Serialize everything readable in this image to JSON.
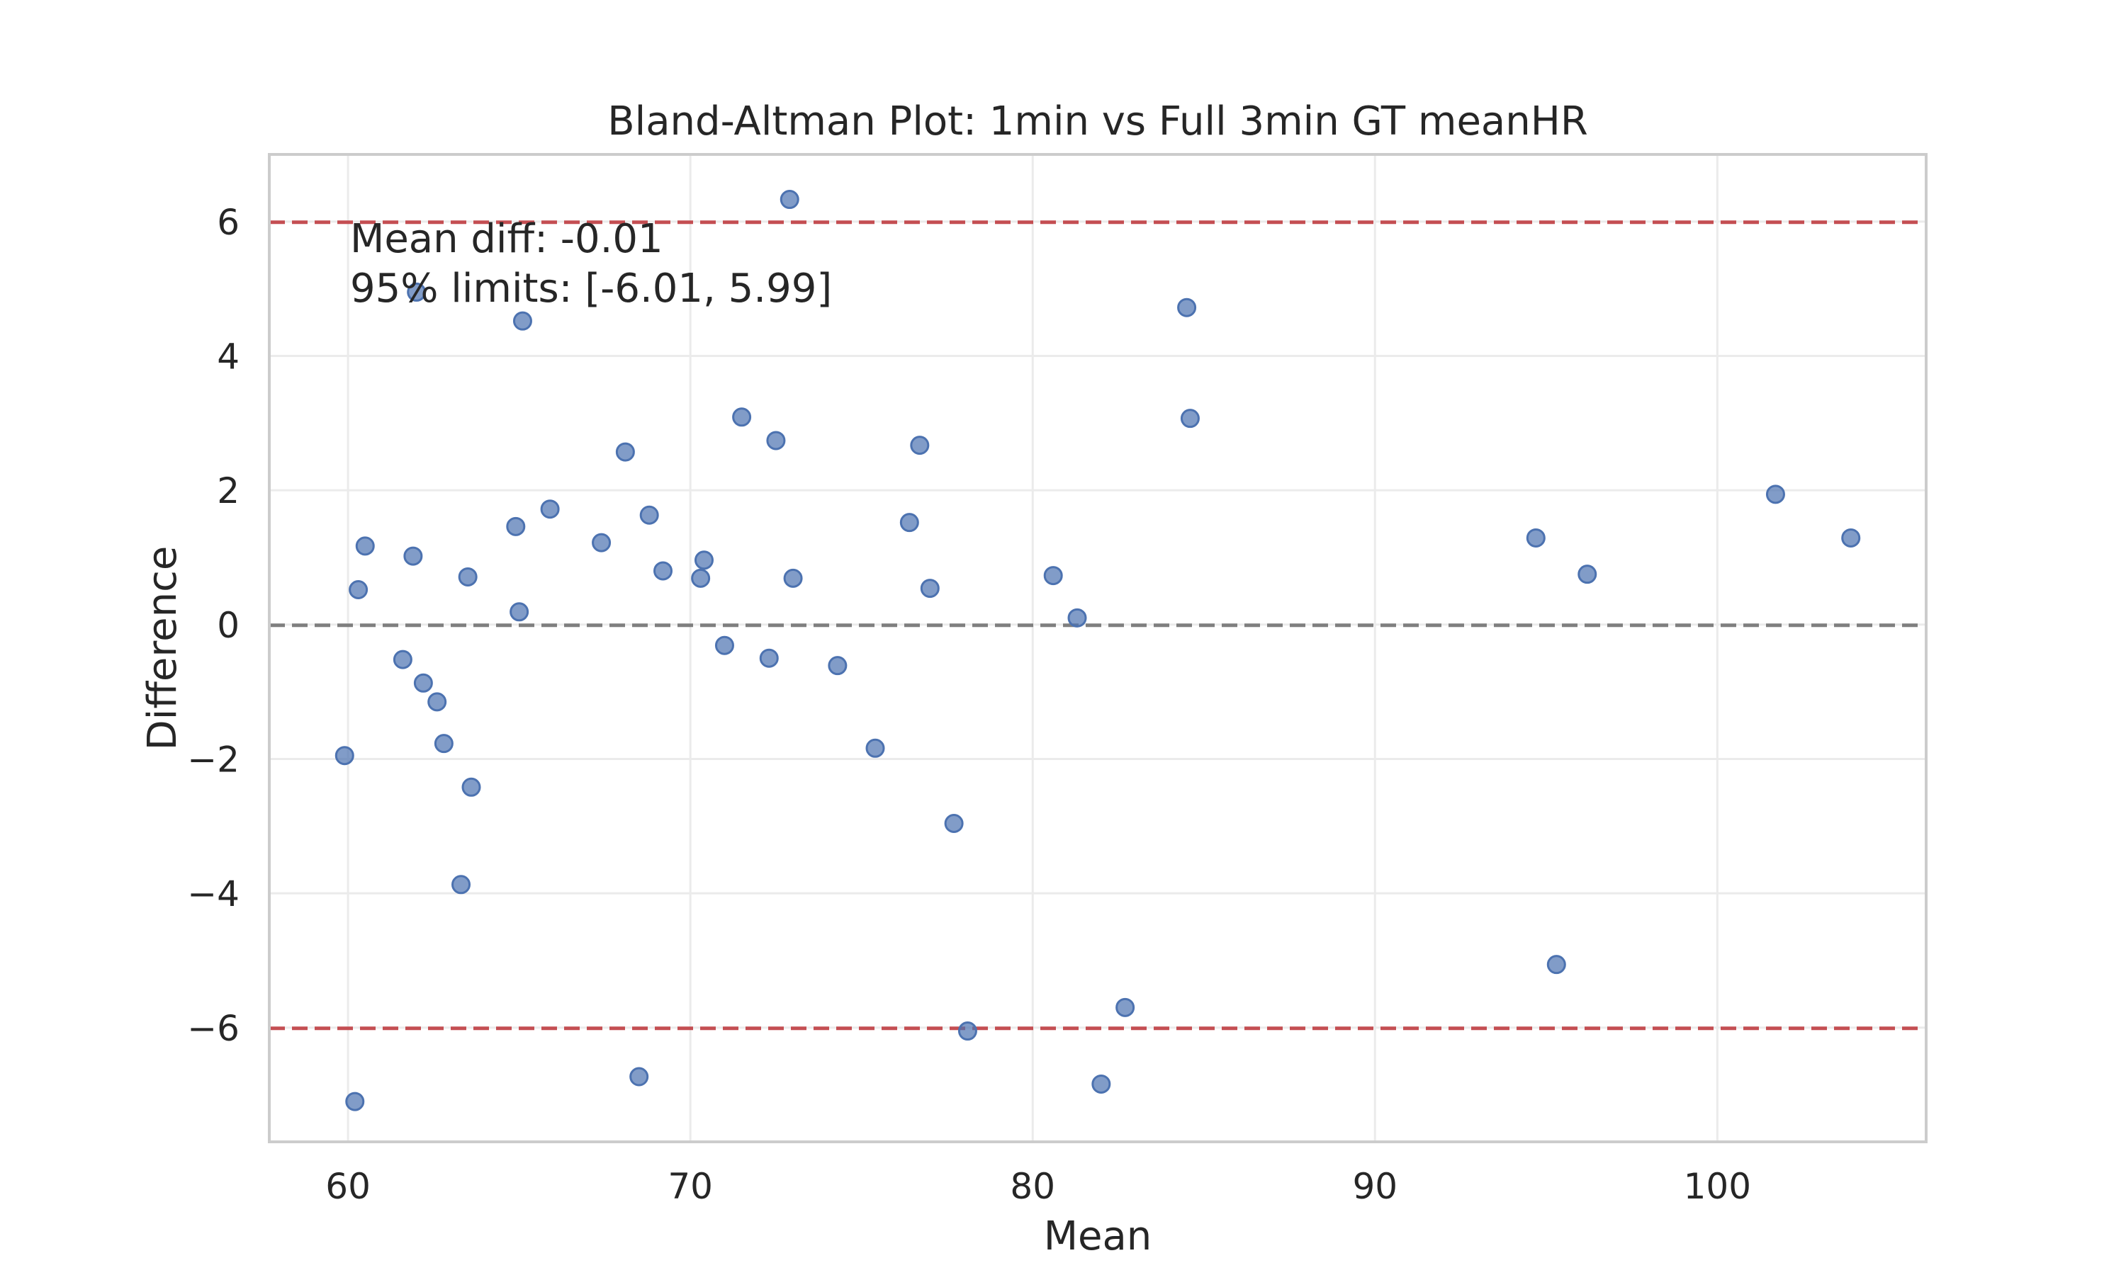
{
  "chart_data": {
    "type": "scatter",
    "title": "Bland-Altman Plot: 1min vs Full 3min GT meanHR",
    "xlabel": "Mean",
    "ylabel": "Difference",
    "xlim": [
      57.7,
      106.1
    ],
    "ylim": [
      -7.7,
      7.0
    ],
    "xticks": [
      60,
      70,
      80,
      90,
      100
    ],
    "yticks": [
      -6,
      -4,
      -2,
      0,
      2,
      4,
      6
    ],
    "ytick_labels": [
      "−6",
      "−4",
      "−2",
      "0",
      "2",
      "4",
      "6"
    ],
    "grid": true,
    "annotations": [
      "Mean diff: -0.01",
      "95% limits: [-6.01, 5.99]"
    ],
    "reference_lines": [
      {
        "y": -0.01,
        "style": "dashed",
        "color": "#7f7f7f"
      },
      {
        "y": 5.99,
        "style": "dashed",
        "color": "#c44e52"
      },
      {
        "y": -6.01,
        "style": "dashed",
        "color": "#c44e52"
      }
    ],
    "point_color": "#4c72b0",
    "points": [
      {
        "x": 59.9,
        "y": -1.95
      },
      {
        "x": 60.2,
        "y": -7.1
      },
      {
        "x": 60.3,
        "y": 0.52
      },
      {
        "x": 60.5,
        "y": 1.17
      },
      {
        "x": 61.6,
        "y": -0.52
      },
      {
        "x": 61.9,
        "y": 1.02
      },
      {
        "x": 62.0,
        "y": 4.95
      },
      {
        "x": 62.2,
        "y": -0.87
      },
      {
        "x": 62.6,
        "y": -1.15
      },
      {
        "x": 62.8,
        "y": -1.77
      },
      {
        "x": 63.3,
        "y": -3.87
      },
      {
        "x": 63.5,
        "y": 0.71
      },
      {
        "x": 63.6,
        "y": -2.42
      },
      {
        "x": 64.9,
        "y": 1.46
      },
      {
        "x": 65.0,
        "y": 0.19
      },
      {
        "x": 65.1,
        "y": 4.52
      },
      {
        "x": 65.9,
        "y": 1.72
      },
      {
        "x": 67.4,
        "y": 1.22
      },
      {
        "x": 68.1,
        "y": 2.57
      },
      {
        "x": 68.5,
        "y": -6.73
      },
      {
        "x": 68.8,
        "y": 1.63
      },
      {
        "x": 69.2,
        "y": 0.8
      },
      {
        "x": 70.3,
        "y": 0.69
      },
      {
        "x": 70.4,
        "y": 0.96
      },
      {
        "x": 71.0,
        "y": -0.31
      },
      {
        "x": 71.5,
        "y": 3.09
      },
      {
        "x": 72.3,
        "y": -0.5
      },
      {
        "x": 72.5,
        "y": 2.74
      },
      {
        "x": 72.9,
        "y": 6.33
      },
      {
        "x": 73.0,
        "y": 0.69
      },
      {
        "x": 74.3,
        "y": -0.61
      },
      {
        "x": 75.4,
        "y": -1.84
      },
      {
        "x": 76.4,
        "y": 1.52
      },
      {
        "x": 76.7,
        "y": 2.67
      },
      {
        "x": 77.0,
        "y": 0.54
      },
      {
        "x": 77.7,
        "y": -2.96
      },
      {
        "x": 78.1,
        "y": -6.05
      },
      {
        "x": 80.6,
        "y": 0.73
      },
      {
        "x": 81.3,
        "y": 0.1
      },
      {
        "x": 82.0,
        "y": -6.84
      },
      {
        "x": 82.7,
        "y": -5.7
      },
      {
        "x": 84.5,
        "y": 4.72
      },
      {
        "x": 84.6,
        "y": 3.07
      },
      {
        "x": 94.7,
        "y": 1.29
      },
      {
        "x": 95.3,
        "y": -5.06
      },
      {
        "x": 96.2,
        "y": 0.75
      },
      {
        "x": 101.7,
        "y": 1.94
      },
      {
        "x": 103.9,
        "y": 1.29
      }
    ]
  }
}
